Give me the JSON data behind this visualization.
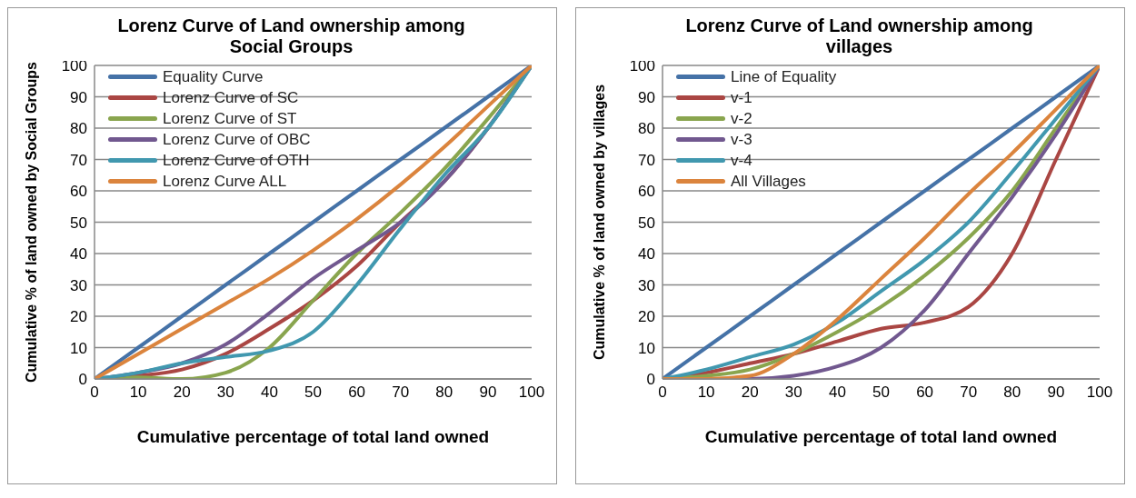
{
  "chart_data": [
    {
      "type": "line",
      "title": "Lorenz Curve of Land ownership among Social Groups",
      "xlabel": "Cumulative percentage of total land owned",
      "ylabel": "Cumulative % of land owned by Social Groups",
      "x": [
        0,
        10,
        20,
        30,
        40,
        50,
        60,
        70,
        80,
        90,
        100
      ],
      "xlim": [
        0,
        100
      ],
      "ylim": [
        0,
        100
      ],
      "xticks": [
        0,
        10,
        20,
        30,
        40,
        50,
        60,
        70,
        80,
        90,
        100
      ],
      "yticks": [
        0,
        10,
        20,
        30,
        40,
        50,
        60,
        70,
        80,
        90,
        100
      ],
      "grid": "y",
      "legend": "top left",
      "marker": "none",
      "series": [
        {
          "name": "Equality Curve",
          "color": "#4572a7",
          "values": [
            0,
            10,
            20,
            30,
            40,
            50,
            60,
            70,
            80,
            90,
            100
          ]
        },
        {
          "name": "Lorenz Curve of SC",
          "color": "#aa4643",
          "values": [
            0,
            1,
            3,
            8,
            16,
            25,
            36,
            50,
            63,
            80,
            100
          ]
        },
        {
          "name": "Lorenz Curve of ST",
          "color": "#89a54e",
          "values": [
            0,
            0.5,
            0,
            2,
            10,
            25,
            40,
            53,
            67,
            83,
            100
          ]
        },
        {
          "name": "Lorenz Curve of OBC",
          "color": "#71588f",
          "values": [
            0,
            2,
            5,
            11,
            21,
            32,
            41,
            50,
            63,
            80,
            100
          ]
        },
        {
          "name": "Lorenz Curve of OTH",
          "color": "#4198af",
          "values": [
            0,
            2,
            5,
            7,
            9,
            15,
            30,
            48,
            65,
            80,
            100
          ]
        },
        {
          "name": "Lorenz Curve ALL",
          "color": "#db843d",
          "values": [
            0,
            8,
            16,
            24,
            32,
            41,
            51,
            62,
            74,
            87,
            100
          ]
        }
      ]
    },
    {
      "type": "line",
      "title": "Lorenz Curve of Land ownership among villages",
      "xlabel": "Cumulative percentage of total land owned",
      "ylabel": "Cumulative % of land owned by villages",
      "x": [
        0,
        10,
        20,
        30,
        40,
        50,
        60,
        70,
        80,
        90,
        100
      ],
      "xlim": [
        0,
        100
      ],
      "ylim": [
        0,
        100
      ],
      "xticks": [
        0,
        10,
        20,
        30,
        40,
        50,
        60,
        70,
        80,
        90,
        100
      ],
      "yticks": [
        0,
        10,
        20,
        30,
        40,
        50,
        60,
        70,
        80,
        90,
        100
      ],
      "grid": "y",
      "legend": "top left",
      "marker": "none",
      "series": [
        {
          "name": "Line of Equality",
          "color": "#4572a7",
          "values": [
            0,
            10,
            20,
            30,
            40,
            50,
            60,
            70,
            80,
            90,
            100
          ]
        },
        {
          "name": "v-1",
          "color": "#aa4643",
          "values": [
            0,
            2,
            5,
            8,
            12,
            16,
            18,
            23,
            40,
            70,
            100
          ]
        },
        {
          "name": "v-2",
          "color": "#89a54e",
          "values": [
            0,
            1,
            3,
            8,
            15,
            23,
            33,
            45,
            60,
            80,
            100
          ]
        },
        {
          "name": "v-3",
          "color": "#71588f",
          "values": [
            0,
            0,
            0,
            1,
            4,
            10,
            22,
            40,
            58,
            78,
            100
          ]
        },
        {
          "name": "v-4",
          "color": "#4198af",
          "values": [
            0,
            3,
            7,
            11,
            18,
            28,
            38,
            50,
            66,
            83,
            100
          ]
        },
        {
          "name": "All Villages",
          "color": "#db843d",
          "values": [
            0,
            0,
            1,
            8,
            19,
            32,
            45,
            59,
            72,
            86,
            100
          ]
        }
      ]
    }
  ]
}
